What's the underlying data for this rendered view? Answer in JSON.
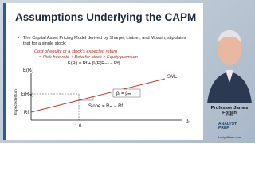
{
  "slide": {
    "title": "Assumptions Underlying the CAPM",
    "bullet": "The Capital Asset Pricing Model derived by Sharpe, Lintner, and Mossin, stipulates that for a single stock:",
    "formula_lines": [
      "Cost of equity or a stock's expected return",
      "= Risk free rate + Beta for stock × Equity premium",
      "E(Rᵢ) = Rf + βᵢ(E(Rₘ) − Rf)"
    ],
    "diagram": {
      "y_axis_title": "E(Rᵢ)",
      "x_axis_title": "βᵢ",
      "y_side_label": "Expected return",
      "line_label": "SML",
      "erm_label": "E(Rₘ)",
      "rf_label": "Rf",
      "beta_label": "βᵢ = βₘ",
      "slope_label": "Slope = Rₘ − Rf",
      "x_tick": "1.0"
    }
  },
  "presenter": {
    "name": "Professor James Forjan",
    "degree": "PhD",
    "logo": "ANALYST PREP",
    "website": "AnalystPrep.com"
  }
}
